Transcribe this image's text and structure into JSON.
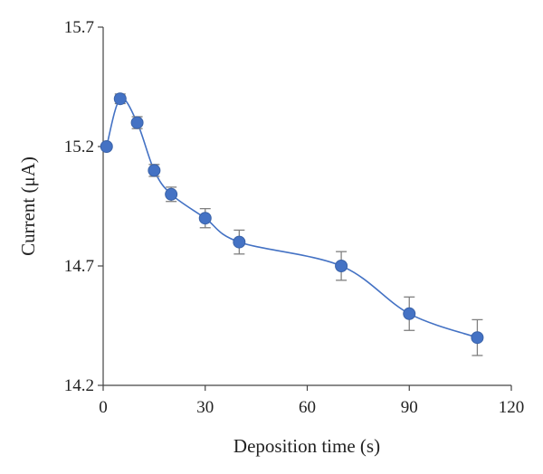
{
  "chart_data": {
    "type": "scatter",
    "title": "",
    "xlabel": "Deposition time (s)",
    "ylabel": "Current (μA)",
    "xlim": [
      0,
      120
    ],
    "ylim": [
      14.2,
      15.7
    ],
    "x_ticks": [
      0,
      30,
      60,
      90,
      120
    ],
    "y_ticks": [
      14.2,
      14.7,
      15.2,
      15.7
    ],
    "x_tick_labels": [
      "0",
      "30",
      "60",
      "90",
      "120"
    ],
    "y_tick_labels": [
      "14.2",
      "14.7",
      "15.2",
      "15.7"
    ],
    "grid": false,
    "line": "smoothed",
    "series": [
      {
        "color": "#4472c4",
        "x": [
          1,
          5,
          10,
          15,
          20,
          30,
          40,
          70,
          90,
          110
        ],
        "y": [
          15.2,
          15.4,
          15.3,
          15.1,
          15.0,
          14.9,
          14.8,
          14.7,
          14.5,
          14.4
        ],
        "error": [
          0,
          0.02,
          0.025,
          0.025,
          0.03,
          0.04,
          0.05,
          0.06,
          0.07,
          0.075
        ]
      }
    ]
  }
}
